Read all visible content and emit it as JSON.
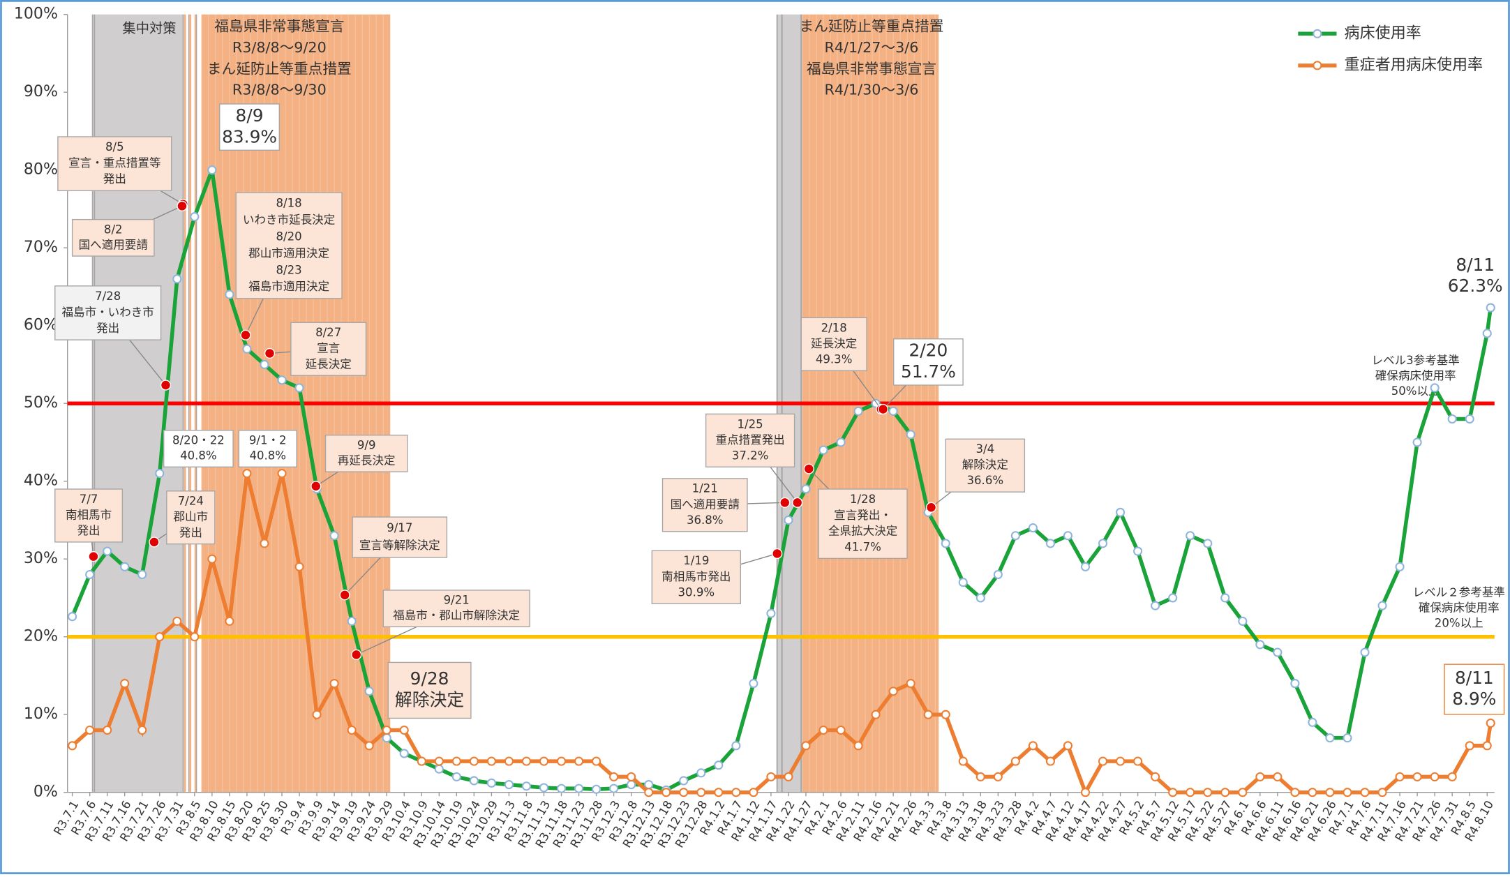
{
  "chart_data": {
    "type": "line",
    "categories": [
      "R3.7.1",
      "R3.7.6",
      "R3.7.11",
      "R3.7.16",
      "R3.7.21",
      "R3.7.26",
      "R3.7.31",
      "R3.8.5",
      "R3.8.10",
      "R3.8.15",
      "R3.8.20",
      "R3.8.25",
      "R3.8.30",
      "R3.9.4",
      "R3.9.9",
      "R3.9.14",
      "R3.9.19",
      "R3.9.24",
      "R3.9.29",
      "R3.10.4",
      "R3.10.9",
      "R3.10.14",
      "R3.10.19",
      "R3.10.24",
      "R3.10.29",
      "R3.11.3",
      "R3.11.8",
      "R3.11.13",
      "R3.11.18",
      "R3.11.23",
      "R3.11.28",
      "R3.12.3",
      "R3.12.8",
      "R3.12.13",
      "R3.12.18",
      "R3.12.23",
      "R3.12.28",
      "R4.1.2",
      "R4.1.7",
      "R4.1.12",
      "R4.1.17",
      "R4.1.22",
      "R4.1.27",
      "R4.2.1",
      "R4.2.6",
      "R4.2.11",
      "R4.2.16",
      "R4.2.21",
      "R4.2.26",
      "R4.3.3",
      "R4.3.8",
      "R4.3.13",
      "R4.3.18",
      "R4.3.23",
      "R4.3.28",
      "R4.4.2",
      "R4.4.7",
      "R4.4.12",
      "R4.4.17",
      "R4.4.22",
      "R4.4.27",
      "R4.5.2",
      "R4.5.7",
      "R4.5.12",
      "R4.5.17",
      "R4.5.22",
      "R4.5.27",
      "R4.6.1",
      "R4.6.6",
      "R4.6.11",
      "R4.6.16",
      "R4.6.21",
      "R4.6.26",
      "R4.7.1",
      "R4.7.6",
      "R4.7.11",
      "R4.7.16",
      "R4.7.21",
      "R4.7.26",
      "R4.7.31",
      "R4.8.5",
      "R4.8.10",
      null
    ],
    "series": [
      {
        "name": "病床使用率",
        "color": "#1aa339",
        "values": [
          22.6,
          28,
          31,
          29,
          28,
          41,
          66,
          74,
          80,
          64,
          57,
          55,
          53,
          52,
          39,
          33,
          22,
          13,
          7,
          5,
          4,
          3,
          2,
          1.5,
          1.2,
          1,
          0.8,
          0.6,
          0.5,
          0.5,
          0.4,
          0.5,
          1,
          1,
          0.3,
          1.5,
          2.5,
          3.5,
          6,
          14,
          23,
          35,
          39,
          44,
          45,
          49,
          50,
          49,
          46,
          36,
          32,
          27,
          25,
          28,
          33,
          34,
          32,
          33,
          29,
          32,
          36,
          31,
          24,
          25,
          33,
          32,
          25,
          22,
          19,
          18,
          14,
          9,
          7,
          7,
          18,
          24,
          29,
          45,
          52,
          48,
          48,
          59,
          62.3
        ]
      },
      {
        "name": "重症者用病床使用率",
        "color": "#ed7d31",
        "values": [
          6,
          8,
          8,
          14,
          8,
          20,
          22,
          20,
          30,
          22,
          41,
          32,
          41,
          29,
          10,
          14,
          8,
          6,
          8,
          8,
          4,
          4,
          4,
          4,
          4,
          4,
          4,
          4,
          4,
          4,
          4,
          2,
          2,
          0,
          0,
          0,
          0,
          0,
          0,
          0,
          2,
          2,
          6,
          8,
          8,
          6,
          10,
          13,
          14,
          10,
          10,
          4,
          2,
          2,
          4,
          6,
          4,
          6,
          0,
          4,
          4,
          4,
          2,
          0,
          0,
          0,
          0,
          0,
          2,
          2,
          0,
          0,
          0,
          0,
          0,
          0,
          2,
          2,
          2,
          2,
          6,
          6,
          8.9
        ]
      }
    ],
    "ylim": [
      0,
      100
    ],
    "yticks": [
      {
        "value": 0,
        "label": "0%"
      },
      {
        "value": 10,
        "label": "10%"
      },
      {
        "value": 20,
        "label": "20%"
      },
      {
        "value": 30,
        "label": "30%"
      },
      {
        "value": 40,
        "label": "40%"
      },
      {
        "value": 50,
        "label": "50%"
      },
      {
        "value": 60,
        "label": "60%"
      },
      {
        "value": 70,
        "label": "70%"
      },
      {
        "value": 80,
        "label": "80%"
      },
      {
        "value": 90,
        "label": "90%"
      },
      {
        "value": 100,
        "label": "100%"
      }
    ],
    "grid": false,
    "legend": "top-right",
    "reference_lines": [
      {
        "value": 50,
        "color": "#ff0000",
        "lines": [
          "レベル3参考基準",
          "確保病床使用率",
          "50%以上"
        ]
      },
      {
        "value": 20,
        "color": "#ffc000",
        "lines": [
          "レベル２参考基準",
          "確保病床使用率",
          "20%以上"
        ]
      }
    ],
    "regions": [
      {
        "lines": [
          "集中対策"
        ]
      },
      {
        "lines": [
          "福島県非常事態宣言",
          "R3/8/8～9/20",
          "まん延防止等重点措置",
          "R3/8/8～9/30"
        ]
      },
      {
        "lines": [
          "まん延防止等重点措置",
          "R4/1/27～3/6",
          "福島県非常事態宣言",
          "R4/1/30～3/6"
        ]
      }
    ],
    "annotations": [
      {
        "lines": [
          "8/9",
          "83.9%"
        ]
      },
      {
        "lines": [
          "8/5",
          "宣言・重点措置等",
          "発出"
        ]
      },
      {
        "lines": [
          "8/2",
          "国へ適用要請"
        ]
      },
      {
        "lines": [
          "8/18",
          "いわき市延長決定",
          "8/20",
          "郡山市適用決定",
          "8/23",
          "福島市適用決定"
        ]
      },
      {
        "lines": [
          "7/28",
          "福島市・いわき市",
          "発出"
        ]
      },
      {
        "lines": [
          "8/27",
          "宣言",
          "延長決定"
        ]
      },
      {
        "lines": [
          "8/20・22",
          "40.8%"
        ]
      },
      {
        "lines": [
          "9/1・2",
          "40.8%"
        ]
      },
      {
        "lines": [
          "9/9",
          "再延長決定"
        ]
      },
      {
        "lines": [
          "7/7",
          "南相馬市",
          "発出"
        ]
      },
      {
        "lines": [
          "7/24",
          "郡山市",
          "発出"
        ]
      },
      {
        "lines": [
          "9/17",
          "宣言等解除決定"
        ]
      },
      {
        "lines": [
          "9/21",
          "福島市・郡山市解除決定"
        ]
      },
      {
        "lines": [
          "9/28",
          "解除決定"
        ]
      },
      {
        "lines": [
          "1/25",
          "重点措置発出",
          "37.2%"
        ]
      },
      {
        "lines": [
          "1/21",
          "国へ適用要請",
          "36.8%"
        ]
      },
      {
        "lines": [
          "1/28",
          "宣言発出・",
          "全県拡大決定",
          "41.7%"
        ]
      },
      {
        "lines": [
          "1/19",
          "南相馬市発出",
          "30.9%"
        ]
      },
      {
        "lines": [
          "2/18",
          "延長決定",
          "49.3%"
        ]
      },
      {
        "lines": [
          "2/20",
          "51.7%"
        ]
      },
      {
        "lines": [
          "3/4",
          "解除決定",
          "36.6%"
        ]
      },
      {
        "lines": [
          "8/11",
          "62.3%"
        ]
      },
      {
        "lines": [
          "8/11",
          "8.9%"
        ]
      }
    ]
  }
}
